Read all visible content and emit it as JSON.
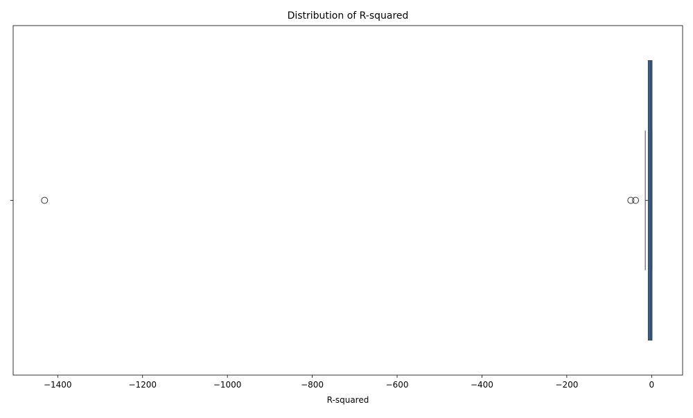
{
  "chart_data": {
    "type": "box",
    "title": "Distribution of R-squared",
    "x_label": "R-squared",
    "categories": [
      null
    ],
    "boxes": [
      {
        "whislo": -15,
        "q1": -8,
        "med": -2,
        "q3": 1,
        "whishi": 1,
        "fliers": [
          -1431,
          -49,
          -38
        ]
      }
    ],
    "color": "#2f5f8a",
    "xlim": [
      -1505,
      73
    ],
    "xticks": [
      {
        "value": -1400,
        "label": "−1400"
      },
      {
        "value": -1200,
        "label": "−1200"
      },
      {
        "value": -1000,
        "label": "−1000"
      },
      {
        "value": -800,
        "label": "−800"
      },
      {
        "value": -600,
        "label": "−600"
      },
      {
        "value": -400,
        "label": "−400"
      },
      {
        "value": -200,
        "label": "−200"
      },
      0
    ]
  }
}
